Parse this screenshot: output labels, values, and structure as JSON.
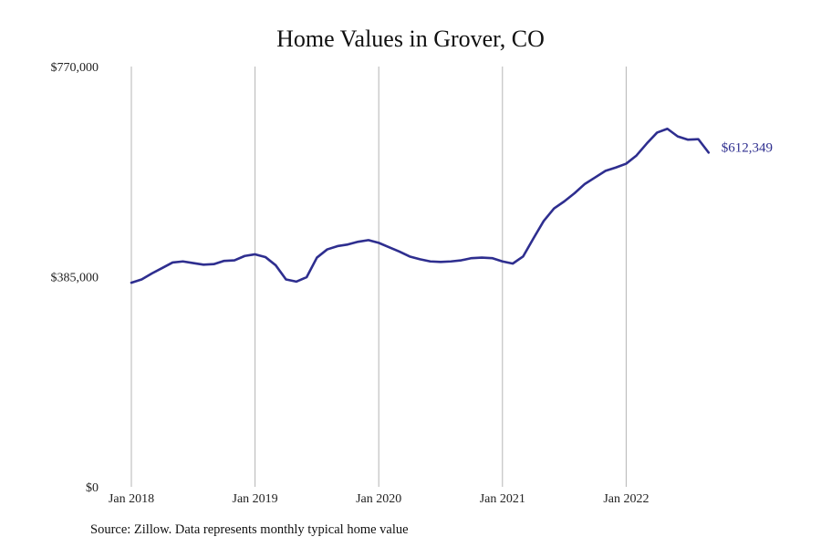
{
  "chart_data": {
    "type": "line",
    "title": "Home Values in Grover, CO",
    "xlabel": "",
    "ylabel": "",
    "ylim": [
      0,
      770000
    ],
    "y_ticks": [
      {
        "value": 0,
        "label": "$0"
      },
      {
        "value": 385000,
        "label": "$385,000"
      },
      {
        "value": 770000,
        "label": "$770,000"
      }
    ],
    "x_ticks": [
      {
        "value": "2018-01",
        "label": "Jan 2018"
      },
      {
        "value": "2019-01",
        "label": "Jan 2019"
      },
      {
        "value": "2020-01",
        "label": "Jan 2020"
      },
      {
        "value": "2021-01",
        "label": "Jan 2021"
      },
      {
        "value": "2022-01",
        "label": "Jan 2022"
      }
    ],
    "x_range": [
      "2018-01",
      "2022-08"
    ],
    "grid": {
      "vertical": true,
      "horizontal": false
    },
    "line_color": "#2e2e8f",
    "grid_color": "#b5b5b5",
    "end_label": "$612,349",
    "series": [
      {
        "name": "",
        "x": [
          "2018-01",
          "2018-02",
          "2018-03",
          "2018-04",
          "2018-05",
          "2018-06",
          "2018-07",
          "2018-08",
          "2018-09",
          "2018-10",
          "2018-11",
          "2018-12",
          "2019-01",
          "2019-02",
          "2019-03",
          "2019-04",
          "2019-05",
          "2019-06",
          "2019-07",
          "2019-08",
          "2019-09",
          "2019-10",
          "2019-11",
          "2019-12",
          "2020-01",
          "2020-02",
          "2020-03",
          "2020-04",
          "2020-05",
          "2020-06",
          "2020-07",
          "2020-08",
          "2020-09",
          "2020-10",
          "2020-11",
          "2020-12",
          "2021-01",
          "2021-02",
          "2021-03",
          "2021-04",
          "2021-05",
          "2021-06",
          "2021-07",
          "2021-08",
          "2021-09",
          "2021-10",
          "2021-11",
          "2021-12",
          "2022-01",
          "2022-02",
          "2022-03",
          "2022-04",
          "2022-05",
          "2022-06",
          "2022-07",
          "2022-08",
          "2022-09"
        ],
        "values": [
          374000,
          380000,
          391000,
          401000,
          411000,
          413000,
          410000,
          407000,
          408000,
          414000,
          415000,
          423000,
          426000,
          421000,
          406000,
          380000,
          376000,
          384000,
          420000,
          435000,
          441000,
          444000,
          449000,
          452000,
          447000,
          439000,
          431000,
          422000,
          417000,
          413000,
          412000,
          413000,
          415000,
          419000,
          420000,
          419000,
          413000,
          409000,
          422000,
          455000,
          487000,
          510000,
          523000,
          538000,
          555000,
          567000,
          579000,
          585000,
          592000,
          607000,
          629000,
          649000,
          656000,
          642000,
          636000,
          637000,
          612349
        ]
      }
    ]
  },
  "footer": {
    "source": "Source: Zillow. Data represents monthly typical home value"
  }
}
